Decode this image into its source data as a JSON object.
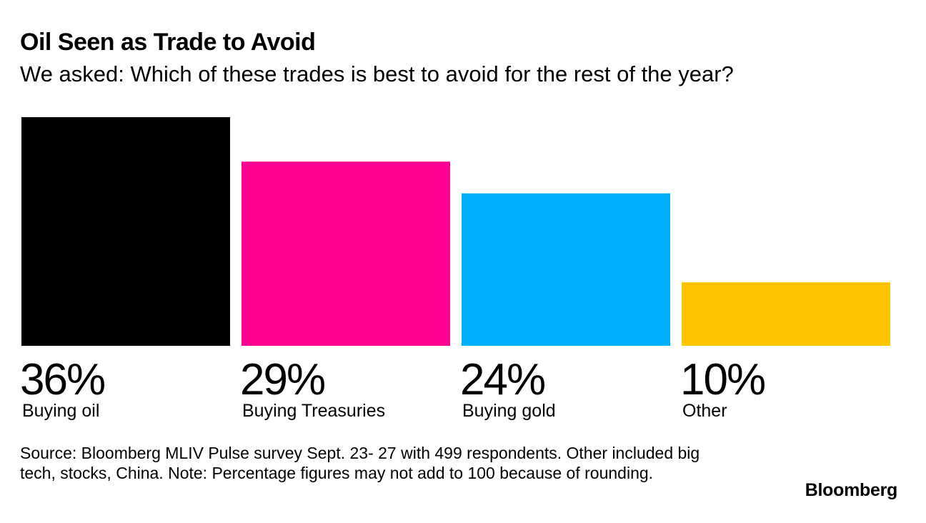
{
  "header": {
    "title": "Oil Seen as Trade to Avoid",
    "subtitle": "We asked: Which of these trades is best to avoid for the rest of the year?"
  },
  "chart_data": {
    "type": "bar",
    "title": "Oil Seen as Trade to Avoid",
    "subtitle": "We asked: Which of these trades is best to avoid for the rest of the year?",
    "categories": [
      "Buying oil",
      "Buying Treasuries",
      "Buying gold",
      "Other"
    ],
    "values": [
      36,
      29,
      24,
      10
    ],
    "value_labels": [
      "36%",
      "29%",
      "24%",
      "10%"
    ],
    "colors": [
      "#000000",
      "#ff0092",
      "#00aeff",
      "#ffc300"
    ],
    "unit": "%",
    "ylim": [
      0,
      36
    ],
    "xlabel": "",
    "ylabel": "",
    "grid": false,
    "legend": "none"
  },
  "footer": {
    "source": "Source: Bloomberg MLIV Pulse survey Sept. 23- 27 with 499 respondents. Other included big tech, stocks, China. Note: Percentage figures may not add to 100 because of rounding.",
    "brand": "Bloomberg"
  }
}
